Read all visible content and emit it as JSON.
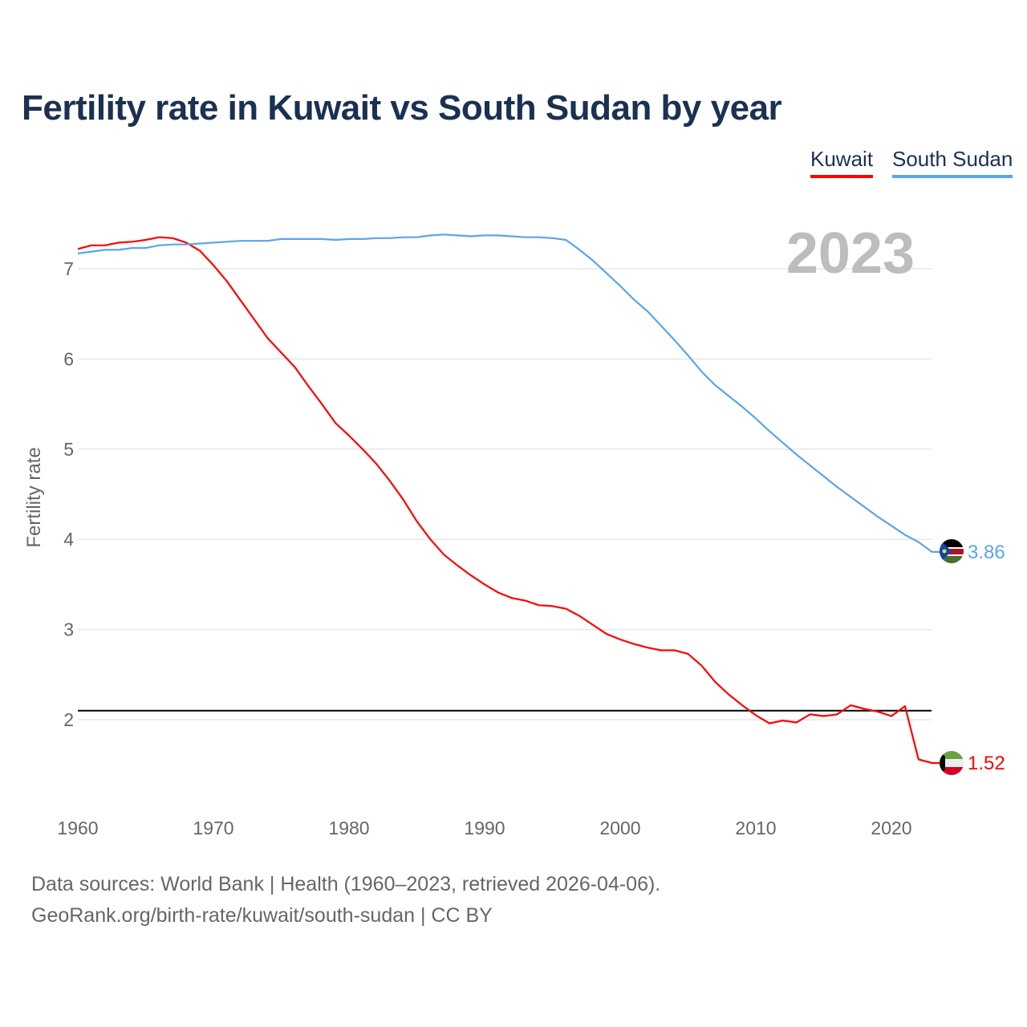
{
  "chart_data": {
    "type": "line",
    "title": "Fertility rate in Kuwait vs South Sudan by year",
    "xlabel": "",
    "ylabel": "Fertility rate",
    "xlim": [
      1960,
      2023
    ],
    "ylim": [
      1.2,
      7.6
    ],
    "x_ticks": [
      1960,
      1970,
      1980,
      1990,
      2000,
      2010,
      2020
    ],
    "y_ticks": [
      2,
      3,
      4,
      5,
      6,
      7
    ],
    "grid": true,
    "legend_position": "top-right",
    "year_label": "2023",
    "reference_line": {
      "value": 2.1,
      "color": "#000000"
    },
    "series": [
      {
        "name": "Kuwait",
        "color": "#ff0000",
        "end_label": "1.52",
        "values": [
          7.22,
          7.26,
          7.26,
          7.29,
          7.3,
          7.32,
          7.35,
          7.34,
          7.29,
          7.2,
          7.04,
          6.86,
          6.65,
          6.44,
          6.23,
          6.07,
          5.91,
          5.7,
          5.5,
          5.29,
          5.15,
          5.0,
          4.84,
          4.65,
          4.44,
          4.2,
          4.0,
          3.83,
          3.71,
          3.6,
          3.5,
          3.41,
          3.35,
          3.32,
          3.27,
          3.26,
          3.23,
          3.15,
          3.05,
          2.95,
          2.89,
          2.84,
          2.8,
          2.77,
          2.77,
          2.73,
          2.6,
          2.42,
          2.28,
          2.16,
          2.05,
          1.96,
          1.99,
          1.97,
          2.06,
          2.04,
          2.06,
          2.16,
          2.12,
          2.09,
          2.04,
          2.15,
          1.56,
          1.52
        ]
      },
      {
        "name": "South Sudan",
        "color": "#5aa5ec",
        "end_label": "3.86",
        "values": [
          7.17,
          7.19,
          7.21,
          7.21,
          7.23,
          7.23,
          7.26,
          7.27,
          7.27,
          7.28,
          7.29,
          7.3,
          7.31,
          7.31,
          7.31,
          7.33,
          7.33,
          7.33,
          7.33,
          7.32,
          7.33,
          7.33,
          7.34,
          7.34,
          7.35,
          7.35,
          7.37,
          7.38,
          7.37,
          7.36,
          7.37,
          7.37,
          7.36,
          7.35,
          7.35,
          7.34,
          7.32,
          7.21,
          7.09,
          6.95,
          6.81,
          6.66,
          6.53,
          6.37,
          6.21,
          6.04,
          5.86,
          5.71,
          5.59,
          5.47,
          5.34,
          5.2,
          5.07,
          4.94,
          4.82,
          4.7,
          4.58,
          4.47,
          4.36,
          4.25,
          4.15,
          4.05,
          3.97,
          3.86
        ]
      }
    ]
  },
  "footer": {
    "line1": "Data sources: World Bank | Health (1960–2023, retrieved 2026-04-06).",
    "line2": "GeoRank.org/birth-rate/kuwait/south-sudan | CC BY"
  }
}
